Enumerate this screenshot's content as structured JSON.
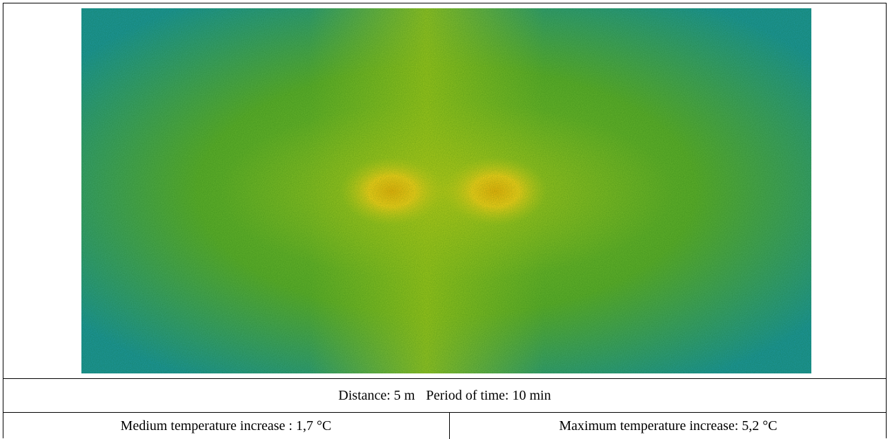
{
  "table": {
    "rows": [
      [
        "Distance: 5 m",
        "Period of time: 10 min"
      ],
      [
        "Medium temperature increase : 1,7 °C",
        "Maximum temperature increase: 5,2 °C"
      ]
    ]
  }
}
